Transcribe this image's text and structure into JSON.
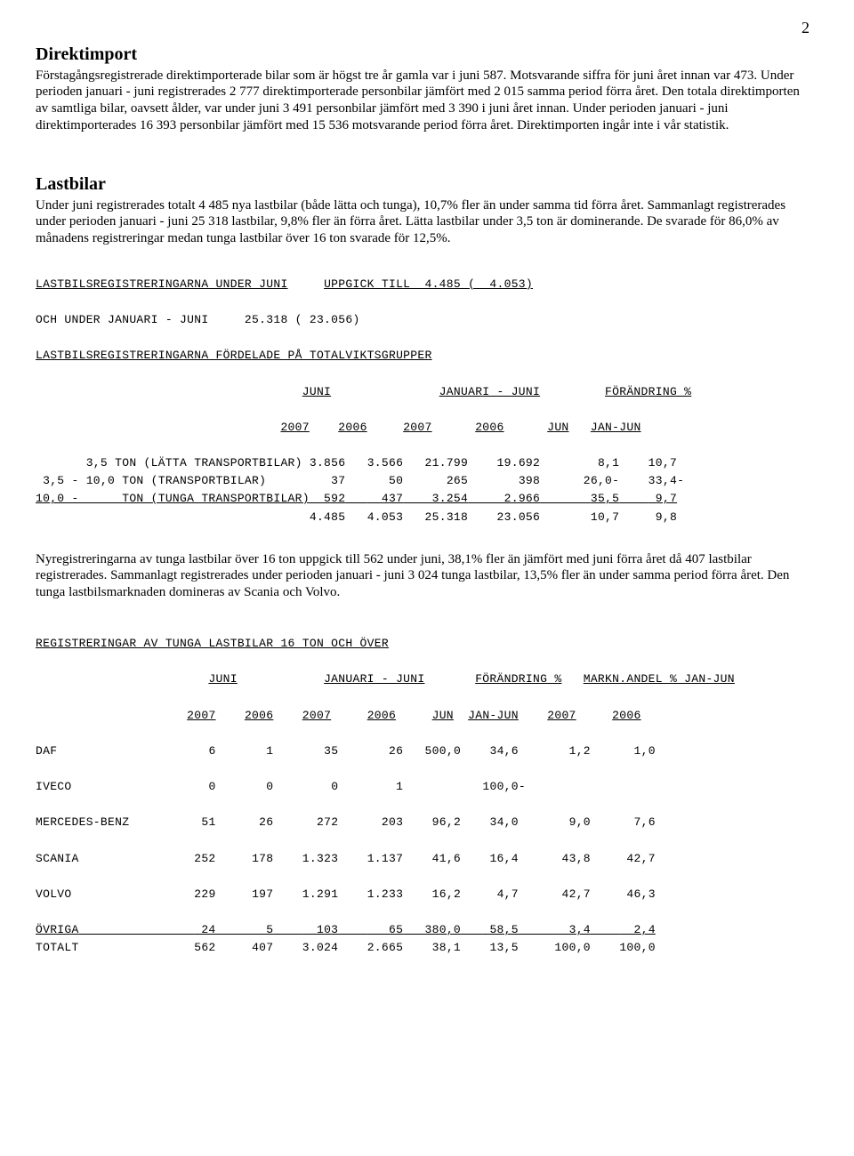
{
  "page_number": "2",
  "sec1": {
    "heading": "Direktimport",
    "para": "Förstagångsregistrerade direktimporterade bilar som är högst tre år gamla var i juni 587. Motsvarande siffra för juni året innan var 473. Under perioden januari - juni registrerades 2 777 direktimporterade personbilar jämfört med 2 015 samma period förra året. Den totala direktimporten av samtliga bilar, oavsett ålder, var under juni 3 491 personbilar jämfört med 3 390 i juni året innan. Under perioden januari - juni direktimporterades 16 393 personbilar jämfört med 15 536 motsvarande period förra året. Direktimporten ingår inte i vår statistik."
  },
  "sec2": {
    "heading": "Lastbilar",
    "para": "Under juni registrerades totalt 4 485 nya lastbilar (både lätta och tunga), 10,7% fler än under samma tid förra året. Sammanlagt registrerades under perioden januari - juni 25 318 lastbilar, 9,8% fler än förra året. Lätta lastbilar under 3,5 ton är dominerande. De svarade för 86,0% av månadens registreringar medan tunga lastbilar över 16 ton svarade för 12,5%."
  },
  "table1": {
    "t1a": "LASTBILSREGISTRERINGARNA UNDER JUNI",
    "t1b": "UPPGICK TILL  4.485 (  4.053)",
    "l2": "OCH UNDER JANUARI - JUNI     25.318 ( 23.056)",
    "l3": "LASTBILSREGISTRERINGARNA FÖRDELADE PÅ TOTALVIKTSGRUPPER",
    "h1a": "JUNI",
    "h1b": "JANUARI - JUNI",
    "h1c": "FÖRÄNDRING %",
    "h2a": "2007",
    "h2b": "2006",
    "h2c": "2007",
    "h2d": "2006",
    "h2e": "JUN",
    "h2f": "JAN-JUN",
    "r1a": "       3,5 TON (LÄTTA TRANSPORTBILAR)",
    "r1b": "3.856",
    "r1c": "3.566",
    "r1d": "21.799",
    "r1e": "19.692",
    "r1f": " 8,1",
    "r1g": "10,7",
    "r2a": " 3,5 - 10,0 TON (TRANSPORTBILAR)     ",
    "r2b": "   37",
    "r2c": "   50",
    "r2d": "   265",
    "r2e": "   398",
    "r2f": "26,0-",
    "r2g": "33,4-",
    "r3a": "10,0 -      TON (TUNGA TRANSPORTBILAR)",
    "r3b": "  592",
    "r3c": "  437",
    "r3d": " 3.254",
    "r3e": " 2.966",
    "r3f": "35,5",
    "r3g": " 9,7",
    "sa": "4.485",
    "sb": "4.053",
    "sc": "25.318",
    "sd": "23.056",
    "se": "10,7",
    "sf": " 9,8"
  },
  "para3": "Nyregistreringarna av tunga lastbilar över 16 ton uppgick till 562 under juni, 38,1% fler än jämfört med juni förra året då 407 lastbilar registrerades. Sammanlagt registrerades under perioden januari  - juni 3 024 tunga lastbilar, 13,5% fler än under samma period förra året. Den tunga lastbilsmarknaden domineras av Scania och Volvo.",
  "table2": {
    "title": "REGISTRERINGAR AV TUNGA LASTBILAR 16 TON OCH ÖVER",
    "h1a": "JUNI",
    "h1b": "JANUARI - JUNI",
    "h1c": "FÖRÄNDRING %",
    "h1d": "MARKN.ANDEL % JAN-JUN",
    "ya": "2007",
    "yb": "2006",
    "yc": "2007",
    "yd": "2006",
    "ye": "JUN",
    "yf": "JAN-JUN",
    "yg": "2007",
    "yh": "2006",
    "r1n": "DAF",
    "r1a": "  6",
    "r1b": "  1",
    "r1c": "   35",
    "r1d": "   26",
    "r1e": "500,0",
    "r1f": " 34,6",
    "r1g": "  1,2",
    "r1h": "  1,0",
    "r2n": "IVECO",
    "r2a": "  0",
    "r2b": "  0",
    "r2c": "    0",
    "r2d": "    1",
    "r2e": "     ",
    "r2f": "100,0-",
    "r2g": "     ",
    "r2h": "     ",
    "r3n": "MERCEDES-BENZ",
    "r3a": " 51",
    "r3b": " 26",
    "r3c": "  272",
    "r3d": "  203",
    "r3e": " 96,2",
    "r3f": " 34,0",
    "r3g": "  9,0",
    "r3h": "  7,6",
    "r4n": "SCANIA",
    "r4a": "252",
    "r4b": "178",
    "r4c": "1.323",
    "r4d": "1.137",
    "r4e": " 41,6",
    "r4f": " 16,4",
    "r4g": " 43,8",
    "r4h": " 42,7",
    "r5n": "VOLVO",
    "r5a": "229",
    "r5b": "197",
    "r5c": "1.291",
    "r5d": "1.233",
    "r5e": " 16,2",
    "r5f": "  4,7",
    "r5g": " 42,7",
    "r5h": " 46,3",
    "r6n": "ÖVRIGA",
    "r6a": " 24",
    "r6b": "  5",
    "r6c": "  103",
    "r6d": "   65",
    "r6e": "380,0",
    "r6f": " 58,5",
    "r6g": "  3,4",
    "r6h": "  2,4",
    "tn": "TOTALT",
    "ta": "562",
    "tb": "407",
    "tc": "3.024",
    "td": "2.665",
    "te": " 38,1",
    "tf": " 13,5",
    "tg": "100,0",
    "th": "100,0"
  }
}
